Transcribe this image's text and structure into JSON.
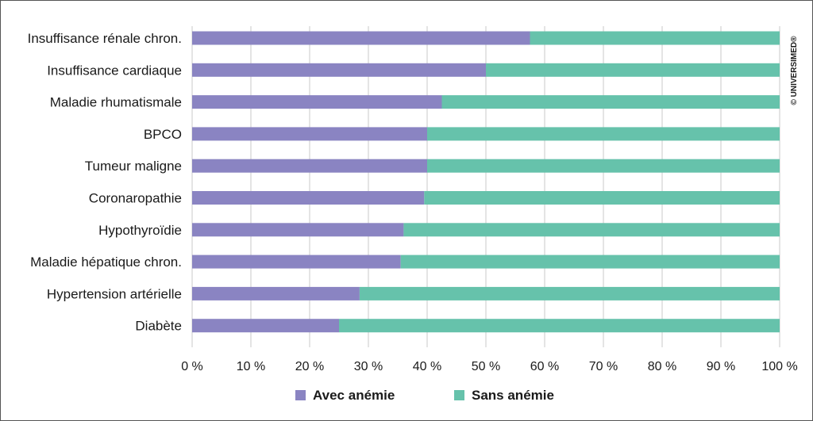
{
  "chart_data": {
    "type": "bar",
    "orientation": "horizontal",
    "stacked": true,
    "percent_stacked": true,
    "title": "",
    "xlabel": "",
    "ylabel": "",
    "categories": [
      "Insuffisance rénale chron.",
      "Insuffisance cardiaque",
      "Maladie rhumatismale",
      "BPCO",
      "Tumeur maligne",
      "Coronaropathie",
      "Hypothyroïdie",
      "Maladie hépatique chron.",
      "Hypertension artérielle",
      "Diabète"
    ],
    "series": [
      {
        "name": "Avec anémie",
        "color": "#8a84c2",
        "values": [
          57.5,
          50,
          42.5,
          40,
          40,
          39.5,
          36,
          35.5,
          28.5,
          25
        ]
      },
      {
        "name": "Sans anémie",
        "color": "#66c2ab",
        "values": [
          42.5,
          50,
          57.5,
          60,
          60,
          60.5,
          64,
          64.5,
          71.5,
          75
        ]
      }
    ],
    "xlim": [
      0,
      100
    ],
    "xticks": [
      0,
      10,
      20,
      30,
      40,
      50,
      60,
      70,
      80,
      90,
      100
    ],
    "tick_suffix": " %",
    "grid": true,
    "legend_position": "bottom"
  },
  "copyright": "© UNIVERSIMED®",
  "colors": {
    "grid": "#c8c8c8",
    "border": "#555555",
    "text": "#1a1a1a"
  }
}
